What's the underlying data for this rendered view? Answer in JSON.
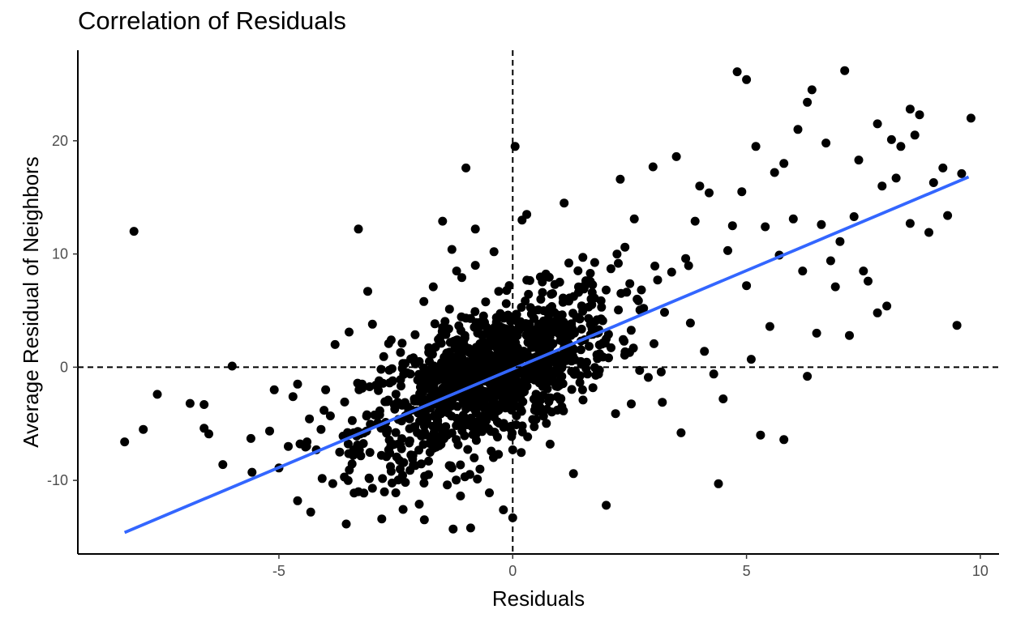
{
  "chart_data": {
    "type": "scatter",
    "title": "Correlation of Residuals",
    "xlabel": "Residuals",
    "ylabel": "Average Residual of Neighbors",
    "xlim": [
      -9.3,
      10.4
    ],
    "ylim": [
      -16.5,
      28.0
    ],
    "x_ticks": [
      -5,
      0,
      5,
      10
    ],
    "x_tick_labels": [
      "-5",
      "0",
      "5",
      "10"
    ],
    "y_ticks": [
      -10,
      0,
      10,
      20
    ],
    "y_tick_labels": [
      "-10",
      "0",
      "10",
      "20"
    ],
    "grid": false,
    "reference_lines": {
      "x": 0,
      "y": 0,
      "style": "dashed"
    },
    "trend_line": {
      "x": [
        -8.3,
        9.75
      ],
      "y": [
        -14.6,
        16.8
      ],
      "color": "#3366ff"
    },
    "point_color": "#000000",
    "points_sampled": [
      [
        -8.1,
        12.0
      ],
      [
        -8.3,
        -6.6
      ],
      [
        -7.9,
        -5.5
      ],
      [
        -7.6,
        -2.4
      ],
      [
        -6.9,
        -3.2
      ],
      [
        -6.6,
        -3.3
      ],
      [
        -6.6,
        -5.4
      ],
      [
        -6.5,
        -5.9
      ],
      [
        -6.2,
        -8.6
      ],
      [
        -6.0,
        0.1
      ],
      [
        -5.6,
        -6.3
      ],
      [
        -5.1,
        -2.0
      ],
      [
        -5.0,
        -8.9
      ],
      [
        -4.8,
        -7.0
      ],
      [
        -4.7,
        -2.6
      ],
      [
        -4.6,
        -11.8
      ],
      [
        -4.6,
        -1.5
      ],
      [
        -4.4,
        -6.6
      ],
      [
        -4.2,
        -7.3
      ],
      [
        -4.1,
        -5.5
      ],
      [
        -4.0,
        -2.0
      ],
      [
        -3.9,
        -4.3
      ],
      [
        -3.8,
        2.0
      ],
      [
        -3.7,
        -7.5
      ],
      [
        -3.6,
        -9.7
      ],
      [
        -3.5,
        3.1
      ],
      [
        -3.4,
        -5.8
      ],
      [
        -3.4,
        -7.3
      ],
      [
        -3.3,
        -11.0
      ],
      [
        -3.3,
        12.2
      ],
      [
        -3.1,
        6.7
      ],
      [
        -3.0,
        -10.7
      ],
      [
        -3.0,
        3.8
      ],
      [
        -2.8,
        -13.4
      ],
      [
        -2.7,
        -7.9
      ],
      [
        -2.6,
        -9.2
      ],
      [
        -2.6,
        2.4
      ],
      [
        -2.5,
        -11.1
      ],
      [
        -2.4,
        1.3
      ],
      [
        -2.3,
        -4.3
      ],
      [
        -2.2,
        -6.5
      ],
      [
        -2.1,
        -3.0
      ],
      [
        -2.0,
        0.5
      ],
      [
        -2.0,
        -12.1
      ],
      [
        -1.9,
        5.8
      ],
      [
        -1.8,
        -8.3
      ],
      [
        -1.7,
        7.1
      ],
      [
        -1.6,
        -5.1
      ],
      [
        -1.5,
        12.9
      ],
      [
        -1.5,
        3.5
      ],
      [
        -1.4,
        -10.4
      ],
      [
        -1.4,
        -6.0
      ],
      [
        -1.3,
        10.4
      ],
      [
        -1.2,
        8.5
      ],
      [
        -1.2,
        1.6
      ],
      [
        -1.1,
        -2.7
      ],
      [
        -1.0,
        17.6
      ],
      [
        -0.9,
        -14.2
      ],
      [
        -0.9,
        4.3
      ],
      [
        -0.8,
        12.2
      ],
      [
        -0.8,
        9.0
      ],
      [
        -0.7,
        -9.0
      ],
      [
        -0.6,
        -4.5
      ],
      [
        -0.5,
        1.8
      ],
      [
        -0.5,
        -11.1
      ],
      [
        -0.4,
        10.2
      ],
      [
        -0.3,
        6.7
      ],
      [
        -0.3,
        -3.8
      ],
      [
        -0.2,
        -12.6
      ],
      [
        -0.1,
        4.6
      ],
      [
        0.0,
        -7.3
      ],
      [
        0.0,
        -13.3
      ],
      [
        0.05,
        19.5
      ],
      [
        0.1,
        2.8
      ],
      [
        0.2,
        13.0
      ],
      [
        0.3,
        13.5
      ],
      [
        0.3,
        -1.2
      ],
      [
        0.4,
        4.7
      ],
      [
        0.5,
        -4.6
      ],
      [
        0.6,
        6.0
      ],
      [
        0.7,
        3.4
      ],
      [
        0.8,
        -6.8
      ],
      [
        0.9,
        7.3
      ],
      [
        1.0,
        -1.6
      ],
      [
        1.1,
        14.5
      ],
      [
        1.2,
        9.2
      ],
      [
        1.3,
        -9.4
      ],
      [
        1.4,
        4.4
      ],
      [
        1.5,
        9.7
      ],
      [
        1.6,
        -0.6
      ],
      [
        1.7,
        6.6
      ],
      [
        1.8,
        1.1
      ],
      [
        1.9,
        5.3
      ],
      [
        2.0,
        -12.2
      ],
      [
        2.1,
        8.7
      ],
      [
        2.2,
        -4.1
      ],
      [
        2.3,
        16.6
      ],
      [
        2.4,
        10.6
      ],
      [
        2.5,
        1.3
      ],
      [
        2.6,
        13.1
      ],
      [
        2.8,
        5.2
      ],
      [
        2.9,
        -0.9
      ],
      [
        3.0,
        17.7
      ],
      [
        3.1,
        7.7
      ],
      [
        3.2,
        -3.1
      ],
      [
        3.4,
        8.4
      ],
      [
        3.5,
        18.6
      ],
      [
        3.6,
        -5.8
      ],
      [
        3.7,
        9.6
      ],
      [
        3.8,
        3.9
      ],
      [
        3.9,
        12.9
      ],
      [
        4.0,
        16.0
      ],
      [
        4.1,
        1.4
      ],
      [
        4.2,
        15.4
      ],
      [
        4.3,
        -0.6
      ],
      [
        4.4,
        -10.3
      ],
      [
        4.5,
        -2.8
      ],
      [
        4.6,
        10.3
      ],
      [
        4.7,
        12.5
      ],
      [
        4.8,
        26.1
      ],
      [
        4.9,
        15.5
      ],
      [
        5.0,
        7.2
      ],
      [
        5.0,
        25.4
      ],
      [
        5.1,
        0.7
      ],
      [
        5.2,
        19.5
      ],
      [
        5.3,
        -6.0
      ],
      [
        5.4,
        12.4
      ],
      [
        5.5,
        3.6
      ],
      [
        5.6,
        17.2
      ],
      [
        5.7,
        9.9
      ],
      [
        5.8,
        18.0
      ],
      [
        5.8,
        -6.4
      ],
      [
        6.0,
        13.1
      ],
      [
        6.1,
        21.0
      ],
      [
        6.2,
        8.5
      ],
      [
        6.3,
        23.4
      ],
      [
        6.3,
        -0.8
      ],
      [
        6.4,
        24.5
      ],
      [
        6.5,
        3.0
      ],
      [
        6.6,
        12.6
      ],
      [
        6.7,
        19.8
      ],
      [
        6.8,
        9.4
      ],
      [
        6.9,
        7.1
      ],
      [
        7.0,
        11.1
      ],
      [
        7.1,
        26.2
      ],
      [
        7.2,
        2.8
      ],
      [
        7.3,
        13.3
      ],
      [
        7.4,
        18.3
      ],
      [
        7.5,
        8.5
      ],
      [
        7.6,
        7.6
      ],
      [
        7.8,
        4.8
      ],
      [
        7.8,
        21.5
      ],
      [
        7.9,
        16.0
      ],
      [
        8.0,
        5.4
      ],
      [
        8.1,
        20.1
      ],
      [
        8.2,
        16.7
      ],
      [
        8.3,
        19.5
      ],
      [
        8.5,
        12.7
      ],
      [
        8.5,
        22.8
      ],
      [
        8.6,
        20.5
      ],
      [
        8.7,
        22.3
      ],
      [
        8.9,
        11.9
      ],
      [
        9.0,
        16.3
      ],
      [
        9.2,
        17.6
      ],
      [
        9.3,
        13.4
      ],
      [
        9.5,
        3.7
      ],
      [
        9.6,
        17.1
      ],
      [
        9.8,
        22.0
      ]
    ]
  }
}
